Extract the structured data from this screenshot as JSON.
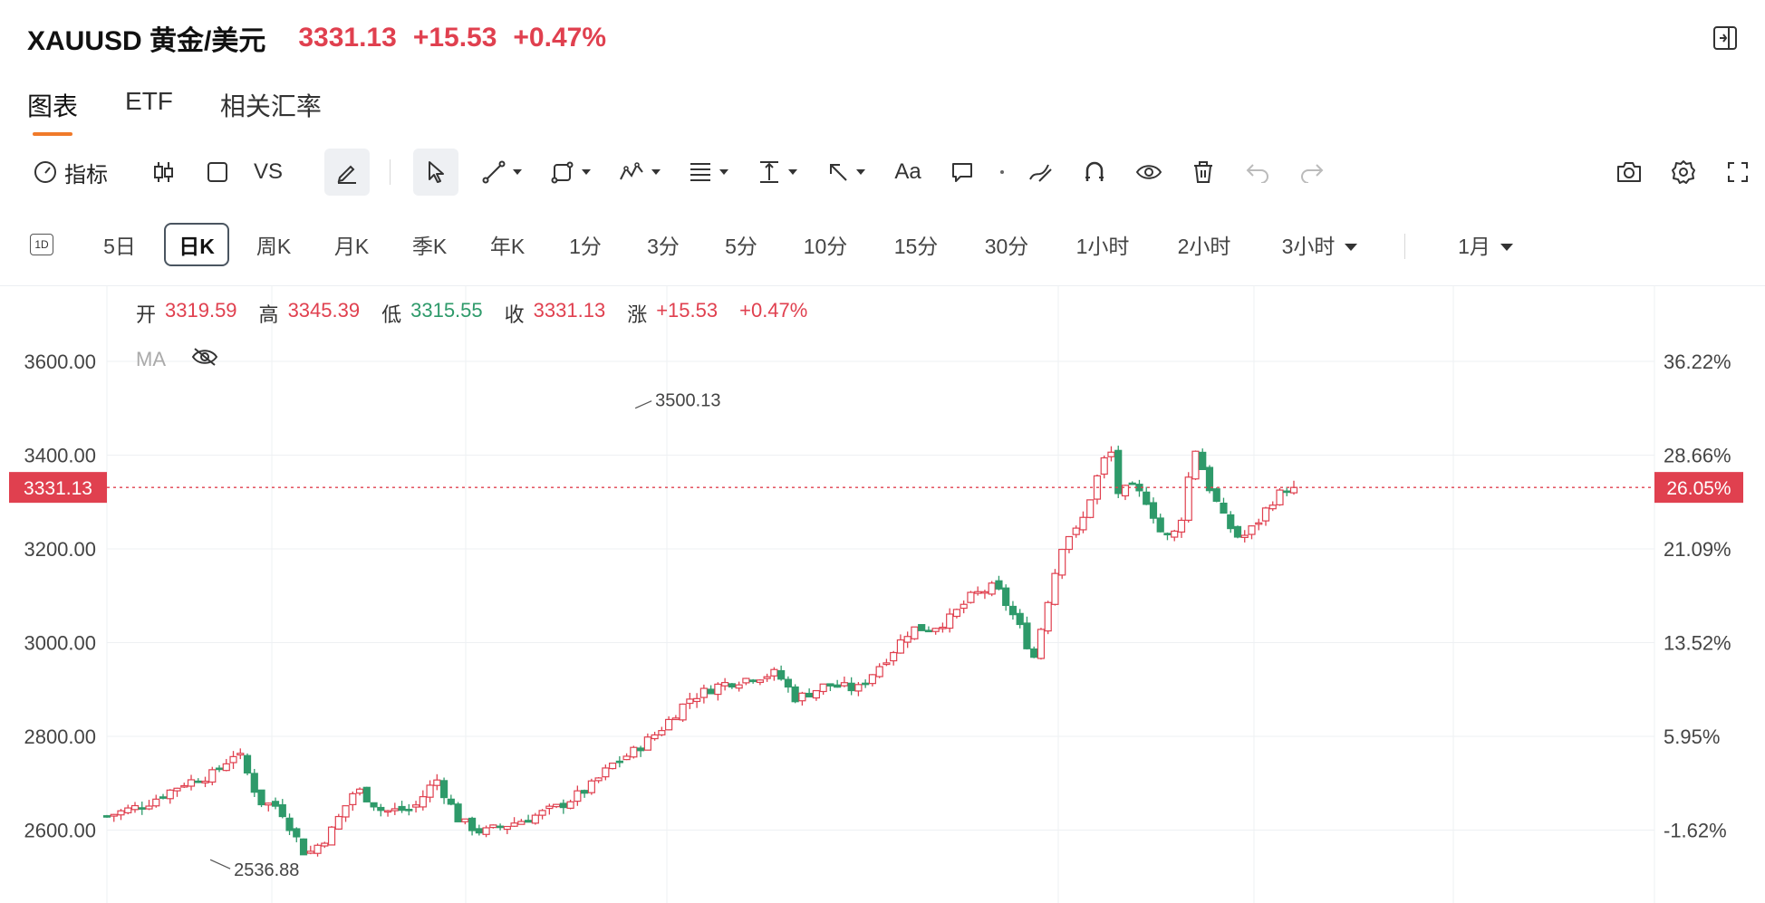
{
  "header": {
    "symbol": "XAUUSD 黄金/美元",
    "price": "3331.13",
    "change": "+15.53",
    "change_pct": "+0.47%"
  },
  "tabs": [
    {
      "label": "图表",
      "active": true
    },
    {
      "label": "ETF",
      "active": false
    },
    {
      "label": "相关汇率",
      "active": false
    }
  ],
  "toolbar": {
    "indicator_label": "指标",
    "compare_label": "VS",
    "text_label": "Aa"
  },
  "periods": {
    "items": [
      "5日",
      "日K",
      "周K",
      "月K",
      "季K",
      "年K",
      "1分",
      "3分",
      "5分",
      "10分",
      "15分",
      "30分",
      "1小时",
      "2小时",
      "3小时",
      "1月"
    ],
    "active": "日K",
    "badge": "1D"
  },
  "ohlc": {
    "open_label": "开",
    "open": "3319.59",
    "high_label": "高",
    "high": "3345.39",
    "low_label": "低",
    "low": "3315.55",
    "close_label": "收",
    "close": "3331.13",
    "chg_label": "涨",
    "chg": "+15.53",
    "chg_pct": "+0.47%"
  },
  "ma_label": "MA",
  "colors": {
    "up": "#e0404f",
    "down": "#2e9a6a",
    "accent": "#f07a2a"
  },
  "chart_data": {
    "type": "candlestick",
    "y_ticks": [
      "3600.00",
      "3400.00",
      "3200.00",
      "3000.00",
      "2800.00",
      "2600.00"
    ],
    "y_tick_values": [
      3600,
      3400,
      3200,
      3000,
      2800,
      2600
    ],
    "pct_ticks": [
      "36.22%",
      "28.66%",
      "21.09%",
      "13.52%",
      "5.95%",
      "-1.62%"
    ],
    "ylim": [
      2490,
      3720
    ],
    "current_price": 3331.13,
    "current_price_label": "3331.13",
    "current_pct_label": "26.05%",
    "max_label": "3500.13",
    "max_value": 3500.13,
    "max_index": 138,
    "min_label": "2536.88",
    "min_value": 2536.88,
    "min_index": 27,
    "close_points": [
      [
        0,
        2630
      ],
      [
        10,
        2655
      ],
      [
        20,
        2700
      ],
      [
        28,
        2720
      ],
      [
        34,
        2770
      ],
      [
        40,
        2660
      ],
      [
        45,
        2650
      ],
      [
        52,
        2545
      ],
      [
        58,
        2590
      ],
      [
        65,
        2690
      ],
      [
        72,
        2640
      ],
      [
        80,
        2645
      ],
      [
        86,
        2710
      ],
      [
        92,
        2620
      ],
      [
        98,
        2595
      ],
      [
        110,
        2625
      ],
      [
        118,
        2650
      ],
      [
        126,
        2690
      ],
      [
        132,
        2740
      ],
      [
        138,
        2770
      ],
      [
        144,
        2810
      ],
      [
        152,
        2880
      ],
      [
        160,
        2910
      ],
      [
        168,
        2925
      ],
      [
        175,
        2935
      ],
      [
        180,
        2880
      ],
      [
        188,
        2910
      ],
      [
        196,
        2900
      ],
      [
        205,
        2980
      ],
      [
        210,
        3030
      ],
      [
        215,
        3030
      ],
      [
        220,
        3050
      ],
      [
        226,
        3100
      ],
      [
        232,
        3120
      ],
      [
        238,
        3040
      ],
      [
        242,
        2965
      ],
      [
        246,
        3100
      ],
      [
        250,
        3225
      ],
      [
        254,
        3240
      ],
      [
        258,
        3340
      ],
      [
        262,
        3420
      ],
      [
        264,
        3320
      ],
      [
        268,
        3330
      ],
      [
        272,
        3300
      ],
      [
        276,
        3220
      ],
      [
        280,
        3240
      ],
      [
        284,
        3420
      ],
      [
        288,
        3330
      ],
      [
        292,
        3260
      ],
      [
        296,
        3220
      ],
      [
        300,
        3250
      ],
      [
        304,
        3300
      ],
      [
        308,
        3330
      ],
      [
        310,
        3331
      ]
    ],
    "candle_count": 170
  }
}
